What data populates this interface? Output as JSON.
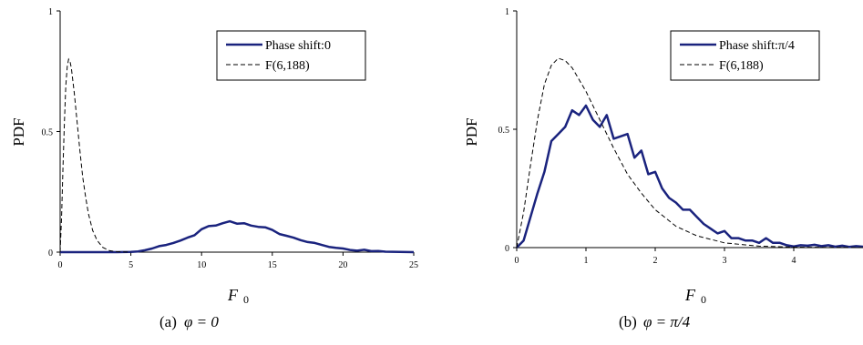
{
  "chart_data": [
    {
      "type": "line",
      "ylabel": "PDF",
      "xlabel": "F",
      "xlabel_sub": "0",
      "xlim": [
        0,
        25
      ],
      "ylim": [
        0,
        1
      ],
      "x_ticks": [
        "0",
        "5",
        "10",
        "15",
        "20",
        "25"
      ],
      "y_ticks": [
        "0",
        "0.5",
        "1"
      ],
      "caption_prefix": "(a)",
      "caption_math": "φ = 0",
      "legend": [
        "Phase shift:0",
        "F(6,188)"
      ],
      "series": [
        {
          "name": "Phase shift:0",
          "style": "solid",
          "color": "#1a237e",
          "points": [
            [
              0,
              0
            ],
            [
              1,
              0
            ],
            [
              2,
              0
            ],
            [
              3,
              0
            ],
            [
              4,
              0
            ],
            [
              5,
              0.001
            ],
            [
              5.5,
              0.003
            ],
            [
              6,
              0.008
            ],
            [
              6.5,
              0.015
            ],
            [
              7,
              0.025
            ],
            [
              7.5,
              0.03
            ],
            [
              8,
              0.038
            ],
            [
              8.5,
              0.048
            ],
            [
              9,
              0.06
            ],
            [
              9.5,
              0.07
            ],
            [
              10,
              0.095
            ],
            [
              10.5,
              0.108
            ],
            [
              11,
              0.11
            ],
            [
              11.5,
              0.12
            ],
            [
              12,
              0.128
            ],
            [
              12.5,
              0.118
            ],
            [
              13,
              0.12
            ],
            [
              13.5,
              0.11
            ],
            [
              14,
              0.105
            ],
            [
              14.5,
              0.103
            ],
            [
              15,
              0.092
            ],
            [
              15.5,
              0.075
            ],
            [
              16,
              0.068
            ],
            [
              16.5,
              0.06
            ],
            [
              17,
              0.05
            ],
            [
              17.5,
              0.042
            ],
            [
              18,
              0.038
            ],
            [
              18.5,
              0.03
            ],
            [
              19,
              0.022
            ],
            [
              19.5,
              0.018
            ],
            [
              20,
              0.015
            ],
            [
              20.5,
              0.009
            ],
            [
              21,
              0.006
            ],
            [
              21.5,
              0.01
            ],
            [
              22,
              0.004
            ],
            [
              22.5,
              0.005
            ],
            [
              23,
              0.002
            ],
            [
              24,
              0.001
            ],
            [
              25,
              0
            ]
          ]
        },
        {
          "name": "F(6,188)",
          "style": "dashed",
          "color": "#000000",
          "points": [
            [
              0,
              0
            ],
            [
              0.1,
              0.15
            ],
            [
              0.2,
              0.35
            ],
            [
              0.3,
              0.54
            ],
            [
              0.4,
              0.69
            ],
            [
              0.5,
              0.77
            ],
            [
              0.6,
              0.8
            ],
            [
              0.7,
              0.79
            ],
            [
              0.8,
              0.76
            ],
            [
              1,
              0.66
            ],
            [
              1.2,
              0.54
            ],
            [
              1.4,
              0.42
            ],
            [
              1.6,
              0.31
            ],
            [
              1.8,
              0.23
            ],
            [
              2,
              0.16
            ],
            [
              2.3,
              0.09
            ],
            [
              2.6,
              0.05
            ],
            [
              3,
              0.02
            ],
            [
              3.5,
              0.006
            ],
            [
              4,
              0.002
            ],
            [
              5,
              0
            ]
          ]
        }
      ]
    },
    {
      "type": "line",
      "ylabel": "PDF",
      "xlabel": "F",
      "xlabel_sub": "0",
      "xlim": [
        0,
        5
      ],
      "ylim": [
        0,
        1
      ],
      "x_ticks": [
        "0",
        "1",
        "2",
        "3",
        "4"
      ],
      "y_ticks": [
        "0",
        "0.5",
        "1"
      ],
      "caption_prefix": "(b)",
      "caption_math": "φ = π/4",
      "legend": [
        "Phase shift:π/4",
        "F(6,188)"
      ],
      "series": [
        {
          "name": "Phase shift:π/4",
          "style": "solid",
          "color": "#1a237e",
          "points": [
            [
              0,
              0
            ],
            [
              0.1,
              0.03
            ],
            [
              0.2,
              0.13
            ],
            [
              0.3,
              0.23
            ],
            [
              0.4,
              0.32
            ],
            [
              0.5,
              0.45
            ],
            [
              0.6,
              0.48
            ],
            [
              0.7,
              0.51
            ],
            [
              0.8,
              0.58
            ],
            [
              0.9,
              0.56
            ],
            [
              1,
              0.6
            ],
            [
              1.1,
              0.54
            ],
            [
              1.2,
              0.51
            ],
            [
              1.3,
              0.56
            ],
            [
              1.4,
              0.46
            ],
            [
              1.5,
              0.47
            ],
            [
              1.6,
              0.48
            ],
            [
              1.7,
              0.38
            ],
            [
              1.8,
              0.41
            ],
            [
              1.9,
              0.31
            ],
            [
              2,
              0.32
            ],
            [
              2.1,
              0.25
            ],
            [
              2.2,
              0.21
            ],
            [
              2.3,
              0.19
            ],
            [
              2.4,
              0.16
            ],
            [
              2.5,
              0.16
            ],
            [
              2.6,
              0.13
            ],
            [
              2.7,
              0.1
            ],
            [
              2.8,
              0.08
            ],
            [
              2.9,
              0.06
            ],
            [
              3,
              0.07
            ],
            [
              3.1,
              0.04
            ],
            [
              3.2,
              0.04
            ],
            [
              3.3,
              0.03
            ],
            [
              3.4,
              0.03
            ],
            [
              3.5,
              0.02
            ],
            [
              3.6,
              0.04
            ],
            [
              3.7,
              0.02
            ],
            [
              3.8,
              0.02
            ],
            [
              3.9,
              0.01
            ],
            [
              4,
              0.005
            ],
            [
              4.1,
              0.01
            ],
            [
              4.2,
              0.008
            ],
            [
              4.3,
              0.012
            ],
            [
              4.4,
              0.006
            ],
            [
              4.5,
              0.01
            ],
            [
              4.6,
              0.004
            ],
            [
              4.7,
              0.008
            ],
            [
              4.8,
              0.003
            ],
            [
              4.9,
              0.006
            ],
            [
              5,
              0.004
            ]
          ]
        },
        {
          "name": "F(6,188)",
          "style": "dashed",
          "color": "#000000",
          "points": [
            [
              0,
              0
            ],
            [
              0.1,
              0.15
            ],
            [
              0.2,
              0.35
            ],
            [
              0.3,
              0.54
            ],
            [
              0.4,
              0.69
            ],
            [
              0.5,
              0.77
            ],
            [
              0.6,
              0.8
            ],
            [
              0.7,
              0.79
            ],
            [
              0.8,
              0.76
            ],
            [
              1,
              0.66
            ],
            [
              1.2,
              0.54
            ],
            [
              1.4,
              0.42
            ],
            [
              1.6,
              0.31
            ],
            [
              1.8,
              0.23
            ],
            [
              2,
              0.16
            ],
            [
              2.3,
              0.09
            ],
            [
              2.6,
              0.05
            ],
            [
              3,
              0.02
            ],
            [
              3.5,
              0.006
            ],
            [
              4,
              0.002
            ],
            [
              5,
              0
            ]
          ]
        }
      ]
    }
  ]
}
